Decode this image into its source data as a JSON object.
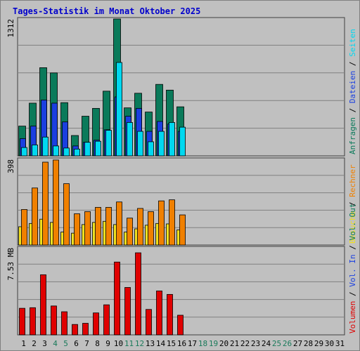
{
  "title": "Tages-Statistik im Monat Oktober 2025",
  "colors": {
    "title": "#0000cc",
    "anfragen": "#0a7a5a",
    "dateien": "#1a3fe0",
    "seiten": "#00d8f0",
    "besuche": "#f0e020",
    "rechner": "#f08000",
    "volumen": "#e00000",
    "weekend_label": "#1a7a5a",
    "axis_label": "#000000"
  },
  "chart_data": {
    "type": "bar",
    "x": [
      "1",
      "2",
      "3",
      "4",
      "5",
      "6",
      "7",
      "8",
      "9",
      "10",
      "11",
      "12",
      "13",
      "14",
      "15",
      "16",
      "17",
      "18",
      "19",
      "20",
      "21",
      "22",
      "23",
      "24",
      "25",
      "26",
      "27",
      "28",
      "29",
      "30",
      "31"
    ],
    "weekend_days": [
      "4",
      "5",
      "11",
      "12",
      "18",
      "19",
      "25",
      "26"
    ],
    "panels": [
      {
        "ymax_label": "1312",
        "ymax": 1312,
        "legend": [
          {
            "text": "Anfragen",
            "color_key": "anfragen"
          },
          {
            "text": "Dateien",
            "color_key": "dateien"
          },
          {
            "text": "Seiten",
            "color_key": "seiten"
          }
        ],
        "series": [
          {
            "name": "Anfragen",
            "color_key": "anfragen",
            "values": [
              285,
              505,
              845,
              795,
              510,
              195,
              380,
              455,
              620,
              1312,
              460,
              600,
              420,
              685,
              630,
              470
            ]
          },
          {
            "name": "Dateien",
            "color_key": "dateien",
            "values": [
              165,
              285,
              535,
              505,
              325,
              95,
              130,
              150,
              250,
              565,
              380,
              455,
              235,
              330,
              305,
              235
            ]
          },
          {
            "name": "Seiten",
            "color_key": "seiten",
            "values": [
              80,
              105,
              180,
              95,
              75,
              65,
              130,
              140,
              245,
              895,
              320,
              235,
              135,
              235,
              320,
              275
            ]
          }
        ]
      },
      {
        "ymax_label": "398",
        "ymax": 398,
        "legend": [
          {
            "text": "Besuche",
            "color_key": "besuche"
          },
          {
            "text": "Rechner",
            "color_key": "rechner"
          }
        ],
        "series": [
          {
            "name": "Besuche",
            "color_key": "besuche",
            "values": [
              85,
              100,
              120,
              105,
              60,
              55,
              95,
              105,
              110,
              95,
              60,
              75,
              92,
              100,
              98,
              70
            ]
          },
          {
            "name": "Rechner",
            "color_key": "rechner",
            "values": [
              165,
              265,
              385,
              395,
              285,
              145,
              155,
              175,
              175,
              200,
              125,
              170,
              155,
              205,
              210,
              140
            ]
          }
        ]
      },
      {
        "ymax_label": "7.53 MB",
        "ymax": 7.53,
        "legend": [
          {
            "text": "Volumen",
            "color_key": "volumen"
          },
          {
            "text": "Vol. In",
            "color_key": "dateien"
          },
          {
            "text": "Vol. Out",
            "color_key": "anfragen"
          }
        ],
        "series": [
          {
            "name": "Volumen",
            "color_key": "volumen",
            "values": [
              2.3,
              2.35,
              5.2,
              2.5,
              2.0,
              0.9,
              1.0,
              1.9,
              2.6,
              6.3,
              4.1,
              7.1,
              2.2,
              3.8,
              3.5,
              1.7
            ]
          }
        ]
      }
    ]
  }
}
